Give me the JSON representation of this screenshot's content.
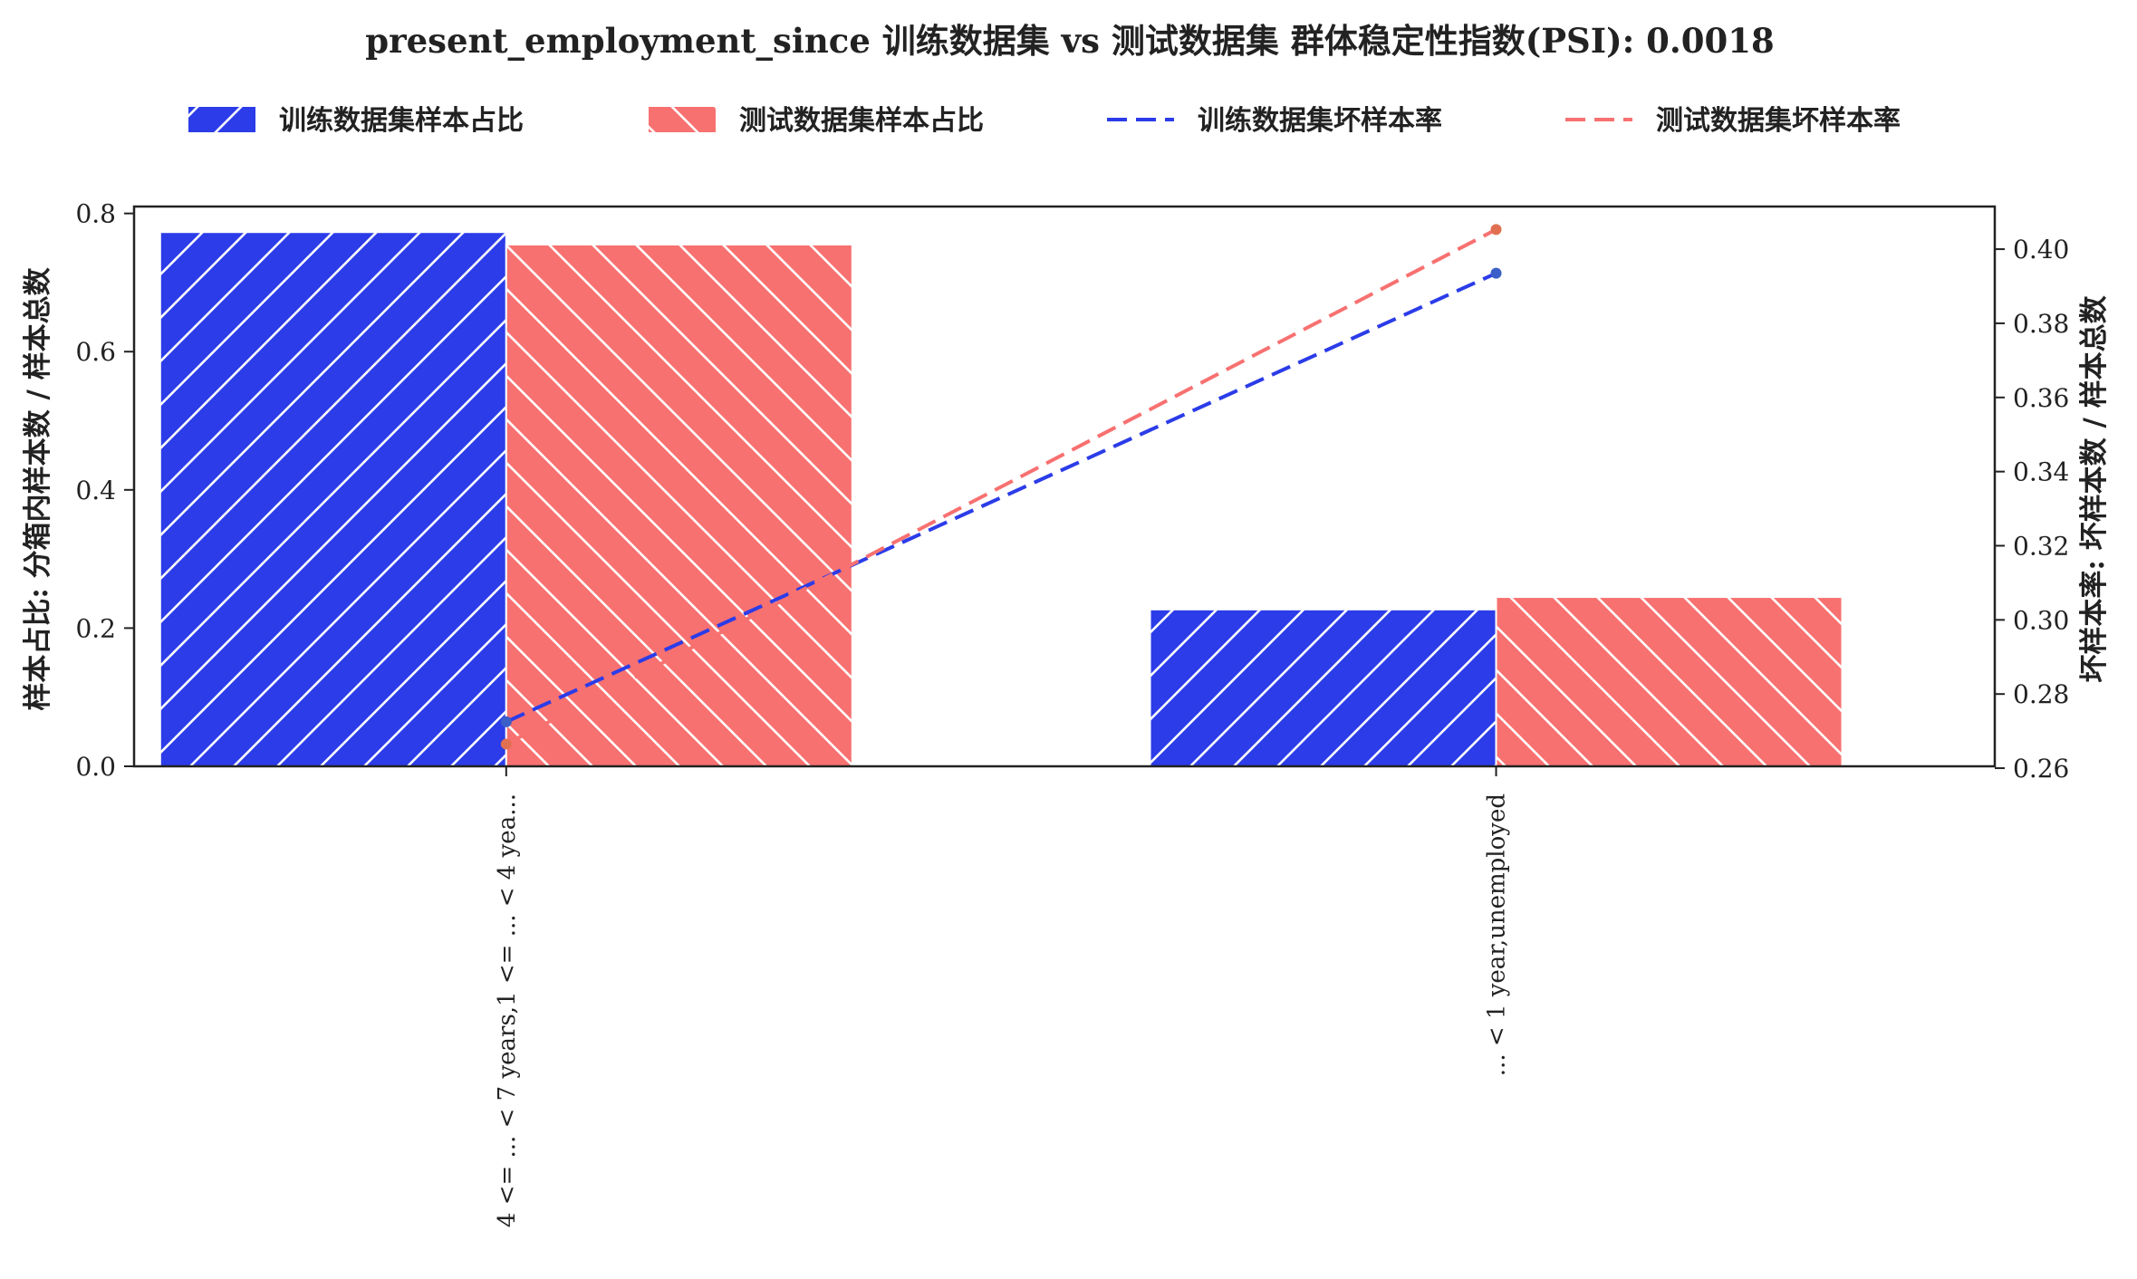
{
  "chart_data": {
    "type": "bar",
    "title": "present_employment_since 训练数据集 vs 测试数据集 群体稳定性指数(PSI): 0.0018",
    "categories": [
      "4 <= ... < 7 years,1 <= ... < 4 yea...",
      "... < 1 year,unemployed"
    ],
    "series": [
      {
        "name": "训练数据集样本占比",
        "kind": "bar",
        "axis": "left",
        "color": "#2b3ce8",
        "hatch": "/",
        "values": [
          0.773,
          0.227
        ]
      },
      {
        "name": "测试数据集样本占比",
        "kind": "bar",
        "axis": "left",
        "color": "#f77170",
        "hatch": "\\",
        "values": [
          0.755,
          0.245
        ]
      },
      {
        "name": "训练数据集坏样本率",
        "kind": "line",
        "axis": "right",
        "color": "#2b3ce8",
        "dash": "dashed",
        "values": [
          0.2725,
          0.3935
        ]
      },
      {
        "name": "测试数据集坏样本率",
        "kind": "line",
        "axis": "right",
        "color": "#f77170",
        "dash": "dashed",
        "values": [
          0.2665,
          0.4053
        ]
      }
    ],
    "y_left": {
      "label": "样本占比: 分箱内样本数 / 样本总数",
      "lim": [
        0.0,
        0.81
      ],
      "ticks": [
        "0.0",
        "0.2",
        "0.4",
        "0.6",
        "0.8"
      ]
    },
    "y_right": {
      "label": "坏样本率: 坏样本数 / 样本总数",
      "lim": [
        0.2605,
        0.4115
      ],
      "ticks": [
        "0.26",
        "0.28",
        "0.30",
        "0.32",
        "0.34",
        "0.36",
        "0.38",
        "0.40"
      ]
    },
    "grid": false,
    "legend_position": "top-center"
  }
}
